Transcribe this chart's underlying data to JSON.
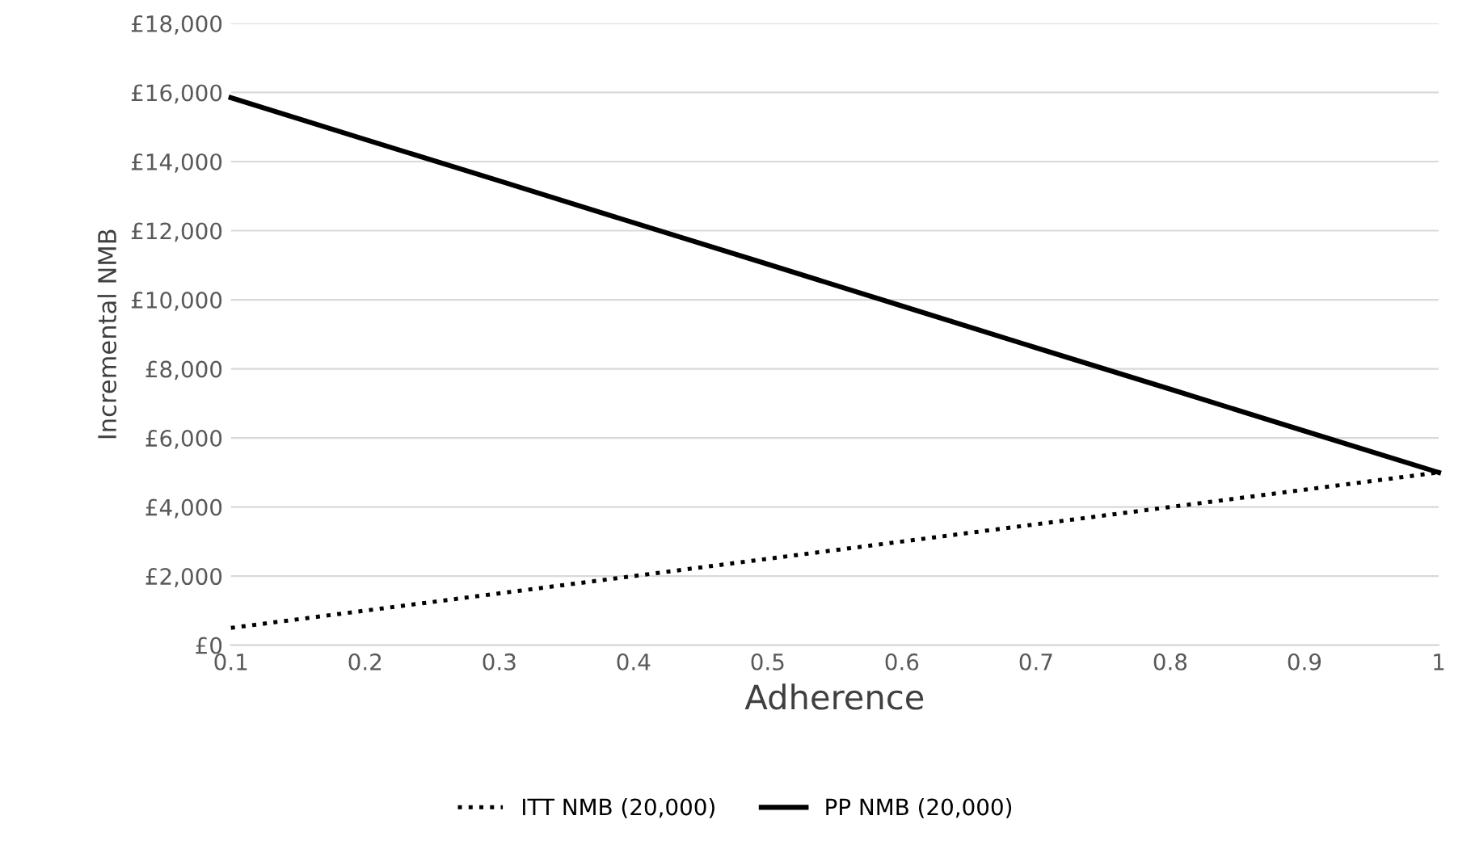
{
  "chart_data": {
    "type": "line",
    "xlabel": "Adherence",
    "ylabel": "Incremental NMB",
    "x": [
      0.1,
      0.2,
      0.3,
      0.4,
      0.5,
      0.6,
      0.7,
      0.8,
      0.9,
      1
    ],
    "series": [
      {
        "name": "ITT NMB (20,000)",
        "color": "#000000",
        "line_style": "dotted",
        "values": [
          500,
          1000,
          1500,
          2000,
          2500,
          3000,
          3500,
          4000,
          4500,
          5000
        ]
      },
      {
        "name": "PP NMB (20,000)",
        "color": "#000000",
        "line_style": "solid",
        "values": [
          15850,
          14640,
          13440,
          12230,
          11030,
          9820,
          8610,
          7410,
          6200,
          5000
        ]
      }
    ],
    "xlim": [
      0.1,
      1
    ],
    "xticks": [
      0.1,
      0.2,
      0.3,
      0.4,
      0.5,
      0.6,
      0.7,
      0.8,
      0.9,
      {
        "value": 1,
        "label": "1"
      }
    ],
    "ylim": [
      0,
      18000
    ],
    "yticks": [
      {
        "value": 0,
        "label": "£0"
      },
      {
        "value": 2000,
        "label": "£2,000"
      },
      {
        "value": 4000,
        "label": "£4,000"
      },
      {
        "value": 6000,
        "label": "£6,000"
      },
      {
        "value": 8000,
        "label": "£8,000"
      },
      {
        "value": 10000,
        "label": "£10,000"
      },
      {
        "value": 12000,
        "label": "£12,000"
      },
      {
        "value": 14000,
        "label": "£14,000"
      },
      {
        "value": 16000,
        "label": "£16,000"
      },
      {
        "value": 18000,
        "label": "£18,000"
      }
    ],
    "grid": "y",
    "legend": "bottom",
    "marker": "none"
  }
}
